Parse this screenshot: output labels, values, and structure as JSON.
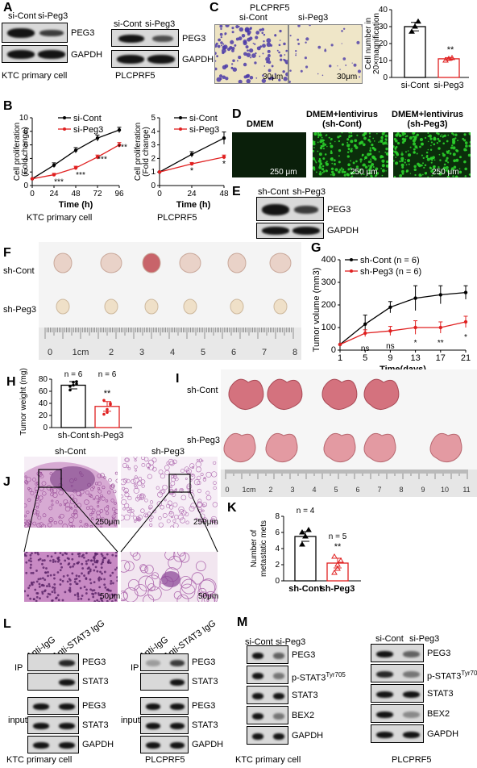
{
  "panels": {
    "A": {
      "label": "A",
      "blot1": {
        "lanes": [
          "si-Cont",
          "si-Peg3"
        ],
        "rows": [
          "PEG3",
          "GAPDH"
        ],
        "caption": "KTC primary cell"
      },
      "blot2": {
        "lanes": [
          "si-Cont",
          "si-Peg3"
        ],
        "rows": [
          "PEG3",
          "GAPDH"
        ],
        "caption": "PLCPRF5"
      }
    },
    "B": {
      "label": "B",
      "legend": [
        "si-Cont",
        "si-Peg3"
      ],
      "ylabel": "Cell proliferation\n(Fold change)",
      "xlabel": "Time (h)",
      "left_caption": "KTC primary cell",
      "right_caption": "PLCPRF5"
    },
    "C": {
      "label": "C",
      "title": "PLCPRF5",
      "lanes": [
        "si-Cont",
        "si-Peg3"
      ],
      "scale": "30μm",
      "ylabel": "Cell number in\n20×magnification",
      "sig": "**"
    },
    "D": {
      "label": "D",
      "cols": [
        "DMEM",
        "DMEM+lentivirus\n(sh-Cont)",
        "DMEM+lentivirus\n(sh-Peg3)"
      ],
      "scale": "250 μm"
    },
    "E": {
      "label": "E",
      "lanes": [
        "sh-Cont",
        "sh-Peg3"
      ],
      "rows": [
        "PEG3",
        "GAPDH"
      ]
    },
    "F": {
      "label": "F",
      "rows": [
        "sh-Cont",
        "sh-Peg3"
      ],
      "ruler": [
        "0",
        "1cm",
        "2",
        "3",
        "4",
        "5",
        "6",
        "7",
        "8"
      ]
    },
    "G": {
      "label": "G",
      "legend": [
        "sh-Cont (n = 6)",
        "sh-Peg3 (n = 6)"
      ],
      "ylabel": "Tumor volume (mm³)",
      "xlabel": "Time(days)",
      "sig": [
        "ns",
        "ns",
        "*",
        "**",
        "*"
      ]
    },
    "H": {
      "label": "H",
      "ylabel": "Tumor weight (mg)",
      "n": [
        "n = 6",
        "n = 6"
      ],
      "cats": [
        "sh-Cont",
        "sh-Peg3"
      ],
      "sig": "**"
    },
    "I": {
      "label": "I",
      "rows": [
        "sh-Cont",
        "sh-Peg3"
      ],
      "ruler": [
        "0",
        "1cm",
        "2",
        "3",
        "4",
        "5",
        "6",
        "7",
        "8",
        "9",
        "10",
        "11"
      ]
    },
    "J": {
      "label": "J",
      "cols": [
        "sh-Cont",
        "sh-Peg3"
      ],
      "scale_top": "250μm",
      "scale_bottom": "50μm"
    },
    "K": {
      "label": "K",
      "ylabel": "Number of\nmetastatic mets",
      "n": [
        "n = 4",
        "n = 5"
      ],
      "cats": [
        "sh-Cont",
        "sh-Peg3"
      ],
      "sig": "**"
    },
    "L": {
      "label": "L",
      "lanes": [
        "Anti-IgG",
        "Anti-STAT3 IgG"
      ],
      "ip": "IP",
      "input": "input",
      "rows": [
        "PEG3",
        "STAT3",
        "PEG3",
        "STAT3",
        "GAPDH"
      ],
      "captions": [
        "KTC primary cell",
        "PLCPRF5"
      ]
    },
    "M": {
      "label": "M",
      "lanes": [
        "si-Cont",
        "si-Peg3"
      ],
      "rows": [
        "PEG3",
        "p-STAT3",
        "STAT3",
        "BEX2",
        "GAPDH"
      ],
      "sup": "Tyr705",
      "captions": [
        "KTC primary cell",
        "PLCPRF5"
      ]
    }
  },
  "chart_data": [
    {
      "type": "line",
      "panel": "B-left",
      "x": [
        0,
        24,
        48,
        72,
        96
      ],
      "xlabel": "Time (h)",
      "ylabel": "Cell proliferation (Fold change)",
      "ylim": [
        0,
        10
      ],
      "series": [
        {
          "name": "si-Cont",
          "values": [
            1,
            3,
            5.2,
            7,
            8.2
          ],
          "color": "#000000"
        },
        {
          "name": "si-Peg3",
          "values": [
            1,
            1.6,
            2.6,
            4.2,
            6
          ],
          "color": "#e02020"
        }
      ],
      "annotations": [
        "***",
        "***",
        "***",
        "***"
      ]
    },
    {
      "type": "line",
      "panel": "B-right",
      "x": [
        0,
        24,
        48
      ],
      "xlabel": "Time (h)",
      "ylim": [
        0,
        5
      ],
      "series": [
        {
          "name": "si-Cont",
          "values": [
            1,
            2.3,
            3.5
          ],
          "color": "#000000"
        },
        {
          "name": "si-Peg3",
          "values": [
            1,
            1.6,
            2.1
          ],
          "color": "#e02020"
        }
      ],
      "annotations": [
        "*",
        "*"
      ]
    },
    {
      "type": "bar",
      "panel": "C",
      "categories": [
        "si-Cont",
        "si-Peg3"
      ],
      "values": [
        30,
        11
      ],
      "ylim": [
        0,
        40
      ],
      "ylabel": "Cell number in 20×magnification"
    },
    {
      "type": "line",
      "panel": "G",
      "x": [
        1,
        5,
        9,
        13,
        17,
        21
      ],
      "xlabel": "Time(days)",
      "ylabel": "Tumor volume (mm3)",
      "ylim": [
        0,
        400
      ],
      "series": [
        {
          "name": "sh-Cont (n = 6)",
          "values": [
            25,
            115,
            190,
            230,
            245,
            255
          ],
          "color": "#000000"
        },
        {
          "name": "sh-Peg3 (n = 6)",
          "values": [
            25,
            75,
            85,
            100,
            100,
            125
          ],
          "color": "#e02020"
        }
      ]
    },
    {
      "type": "bar",
      "panel": "H",
      "categories": [
        "sh-Cont",
        "sh-Peg3"
      ],
      "values": [
        70,
        35
      ],
      "ylim": [
        0,
        80
      ],
      "ylabel": "Tumor weight (mg)"
    },
    {
      "type": "bar",
      "panel": "K",
      "categories": [
        "sh-Cont",
        "sh-Peg3"
      ],
      "values": [
        5.5,
        2.2
      ],
      "ylim": [
        0,
        8
      ],
      "ylabel": "Number of metastatic mets"
    }
  ],
  "colors": {
    "red": "#e02020",
    "green": "#2bd12b",
    "stain_blue": "#4a3aa8",
    "he_pink": "#b86ab8"
  }
}
